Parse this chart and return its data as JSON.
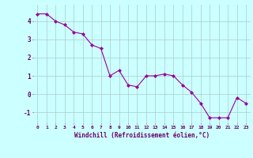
{
  "x": [
    0,
    1,
    2,
    3,
    4,
    5,
    6,
    7,
    8,
    9,
    10,
    11,
    12,
    13,
    14,
    15,
    16,
    17,
    18,
    19,
    20,
    21,
    22,
    23
  ],
  "y": [
    4.4,
    4.4,
    4.0,
    3.8,
    3.4,
    3.3,
    2.7,
    2.5,
    1.0,
    1.3,
    0.5,
    0.4,
    1.0,
    1.0,
    1.1,
    1.0,
    0.5,
    0.1,
    -0.5,
    -1.3,
    -1.3,
    -1.3,
    -0.2,
    -0.5
  ],
  "line_color": "#990099",
  "marker": "D",
  "marker_size": 2,
  "bg_color": "#ccffff",
  "grid_color": "#aacccc",
  "xlabel": "Windchill (Refroidissement éolien,°C)",
  "xlabel_color": "#660066",
  "tick_color": "#660066",
  "ylim": [
    -1.6,
    4.9
  ],
  "xlim": [
    -0.5,
    23.5
  ],
  "yticks": [
    -1,
    0,
    1,
    2,
    3,
    4
  ],
  "xticks": [
    0,
    1,
    2,
    3,
    4,
    5,
    6,
    7,
    8,
    9,
    10,
    11,
    12,
    13,
    14,
    15,
    16,
    17,
    18,
    19,
    20,
    21,
    22,
    23
  ]
}
